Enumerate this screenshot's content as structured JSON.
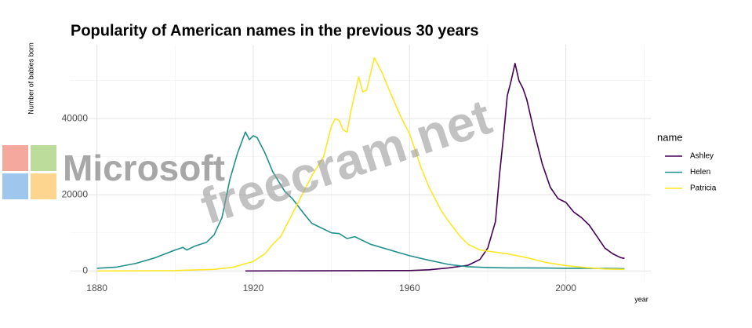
{
  "chart_data": {
    "type": "line",
    "title": "Popularity of American names in the previous 30 years",
    "x_label": "year",
    "y_label": "Number of babies born",
    "legend_title": "name",
    "legend_position": "right",
    "grid": true,
    "xlim": [
      1873.25,
      2021.75
    ],
    "xticks": [
      1880,
      1920,
      1960,
      2000
    ],
    "x_minor_ticks": [
      1900,
      1940,
      1980,
      2020
    ],
    "ylim": [
      -2829,
      59409
    ],
    "yticks": [
      0,
      20000,
      40000
    ],
    "y_minor_ticks": [
      10000,
      30000,
      50000
    ],
    "series": [
      {
        "name": "Ashley",
        "color": "#440154",
        "x": [
          1918,
          1960,
          1965,
          1970,
          1975,
          1978,
          1980,
          1982,
          1983,
          1984,
          1985,
          1986,
          1987,
          1988,
          1989,
          1990,
          1992,
          1994,
          1996,
          1998,
          2000,
          2002,
          2004,
          2006,
          2008,
          2010,
          2012,
          2014,
          2015
        ],
        "values": [
          0,
          100,
          300,
          800,
          1500,
          3000,
          6000,
          13000,
          25000,
          35000,
          46000,
          50000,
          54500,
          50000,
          48000,
          45000,
          36000,
          28000,
          22000,
          19000,
          18000,
          15500,
          14000,
          12000,
          9000,
          6000,
          4500,
          3500,
          3300
        ]
      },
      {
        "name": "Helen",
        "color": "#21908c",
        "x": [
          1880,
          1885,
          1890,
          1895,
          1900,
          1902,
          1903,
          1905,
          1908,
          1910,
          1912,
          1914,
          1916,
          1918,
          1919,
          1920,
          1921,
          1923,
          1925,
          1928,
          1930,
          1933,
          1935,
          1938,
          1940,
          1942,
          1944,
          1946,
          1950,
          1955,
          1960,
          1965,
          1970,
          1975,
          1980,
          1985,
          1990,
          1995,
          2000,
          2005,
          2010,
          2015
        ],
        "values": [
          700,
          1000,
          2000,
          3500,
          5500,
          6200,
          5500,
          6500,
          7500,
          9500,
          14000,
          24000,
          31000,
          36500,
          34500,
          35500,
          35000,
          31000,
          26000,
          21000,
          19000,
          15000,
          12500,
          11000,
          10000,
          9800,
          8500,
          9000,
          7000,
          5500,
          4000,
          2800,
          1700,
          1100,
          900,
          800,
          800,
          750,
          700,
          700,
          650,
          600
        ]
      },
      {
        "name": "Patricia",
        "color": "#fde725",
        "x": [
          1880,
          1900,
          1910,
          1915,
          1920,
          1923,
          1925,
          1927,
          1930,
          1933,
          1935,
          1938,
          1940,
          1941,
          1942,
          1943,
          1944,
          1945,
          1947,
          1948,
          1949,
          1951,
          1953,
          1955,
          1958,
          1960,
          1963,
          1965,
          1968,
          1970,
          1973,
          1975,
          1978,
          1980,
          1985,
          1990,
          1995,
          2000,
          2005,
          2010,
          2015
        ],
        "values": [
          0,
          100,
          400,
          1000,
          2500,
          4500,
          7000,
          9000,
          15000,
          21000,
          25000,
          30000,
          38000,
          40000,
          39500,
          37000,
          36500,
          42000,
          51000,
          47000,
          47500,
          56000,
          52000,
          47000,
          40000,
          36000,
          27000,
          22000,
          16000,
          13000,
          9000,
          7000,
          5500,
          5200,
          4500,
          3500,
          2200,
          1400,
          900,
          500,
          400
        ]
      }
    ]
  },
  "watermark": {
    "logo_text": "Microsoft",
    "site": "freecram.net"
  }
}
